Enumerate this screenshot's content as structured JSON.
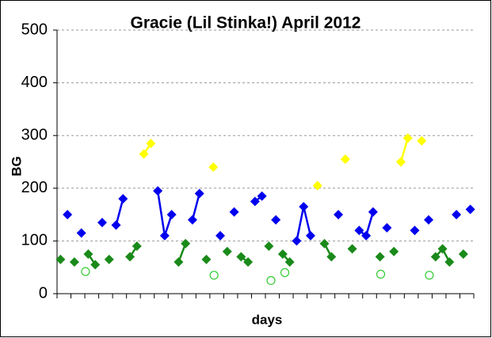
{
  "chart_data": {
    "type": "line",
    "title": "Gracie (Lil Stinka!) April 2012",
    "x_label": "days",
    "y_label": "BG",
    "x": [
      0.25,
      0.75,
      1.25,
      1.75,
      2.25,
      2.75,
      3.25,
      3.75,
      4.25,
      4.75,
      5.25,
      5.75,
      6.25,
      6.75,
      7.25,
      7.75,
      8.25,
      8.75,
      9.25,
      9.75,
      10.25,
      10.75,
      11.25,
      11.75,
      12.25,
      12.75,
      13.25,
      13.75,
      14.25,
      14.75,
      15.25,
      15.75,
      16.25,
      16.75,
      17.25,
      17.75,
      18.25,
      18.75,
      19.25,
      19.75,
      20.25,
      20.75,
      21.25,
      21.75,
      22.25,
      22.75,
      23.25,
      23.75,
      24.25,
      24.75,
      25.25,
      25.75,
      26.25,
      26.75,
      27.25,
      27.75,
      28.25,
      28.75,
      29.25,
      29.75
    ],
    "series": [
      {
        "color": "#ffff00",
        "values": [
          null,
          null,
          null,
          null,
          null,
          null,
          null,
          null,
          null,
          null,
          null,
          null,
          265,
          285,
          null,
          null,
          null,
          null,
          null,
          null,
          null,
          null,
          240,
          null,
          null,
          null,
          null,
          null,
          null,
          null,
          null,
          null,
          null,
          null,
          null,
          null,
          null,
          205,
          null,
          null,
          null,
          255,
          null,
          null,
          null,
          null,
          null,
          null,
          null,
          250,
          295,
          null,
          290,
          null,
          null,
          null,
          null,
          null,
          null,
          null
        ]
      },
      {
        "color": "#0000ee",
        "values": [
          null,
          150,
          null,
          115,
          null,
          null,
          135,
          null,
          130,
          180,
          null,
          null,
          null,
          null,
          195,
          110,
          150,
          null,
          null,
          140,
          190,
          null,
          null,
          110,
          null,
          155,
          null,
          null,
          175,
          185,
          null,
          140,
          null,
          null,
          100,
          165,
          110,
          null,
          null,
          null,
          150,
          null,
          null,
          120,
          110,
          155,
          null,
          125,
          null,
          null,
          null,
          120,
          null,
          140,
          null,
          null,
          null,
          150,
          null,
          160
        ]
      },
      {
        "color": "#1a8a1a",
        "values": [
          65,
          null,
          60,
          null,
          75,
          55,
          null,
          65,
          null,
          null,
          70,
          90,
          null,
          null,
          null,
          null,
          null,
          60,
          95,
          null,
          null,
          65,
          null,
          null,
          80,
          null,
          70,
          60,
          null,
          null,
          90,
          null,
          75,
          60,
          null,
          null,
          null,
          null,
          95,
          70,
          null,
          null,
          85,
          null,
          null,
          null,
          70,
          null,
          80,
          null,
          null,
          null,
          null,
          null,
          70,
          85,
          60,
          null,
          75,
          null
        ]
      }
    ],
    "open_points": {
      "color": "#33cc33",
      "x": [
        2.05,
        11.3,
        15.4,
        16.4,
        23.3,
        26.8
      ],
      "values": [
        42,
        35,
        25,
        40,
        37,
        35
      ]
    },
    "xlim": [
      0,
      30
    ],
    "xticks": [
      0,
      1,
      2,
      3,
      4,
      5,
      6,
      7,
      8,
      9,
      10,
      11,
      12,
      13,
      14,
      15,
      16,
      17,
      18,
      19,
      20,
      21,
      22,
      23,
      24,
      25,
      26,
      27,
      28,
      29,
      30
    ],
    "ylim": [
      0,
      500
    ],
    "yticks": [
      0,
      100,
      200,
      300,
      400,
      500
    ],
    "grid": true
  }
}
